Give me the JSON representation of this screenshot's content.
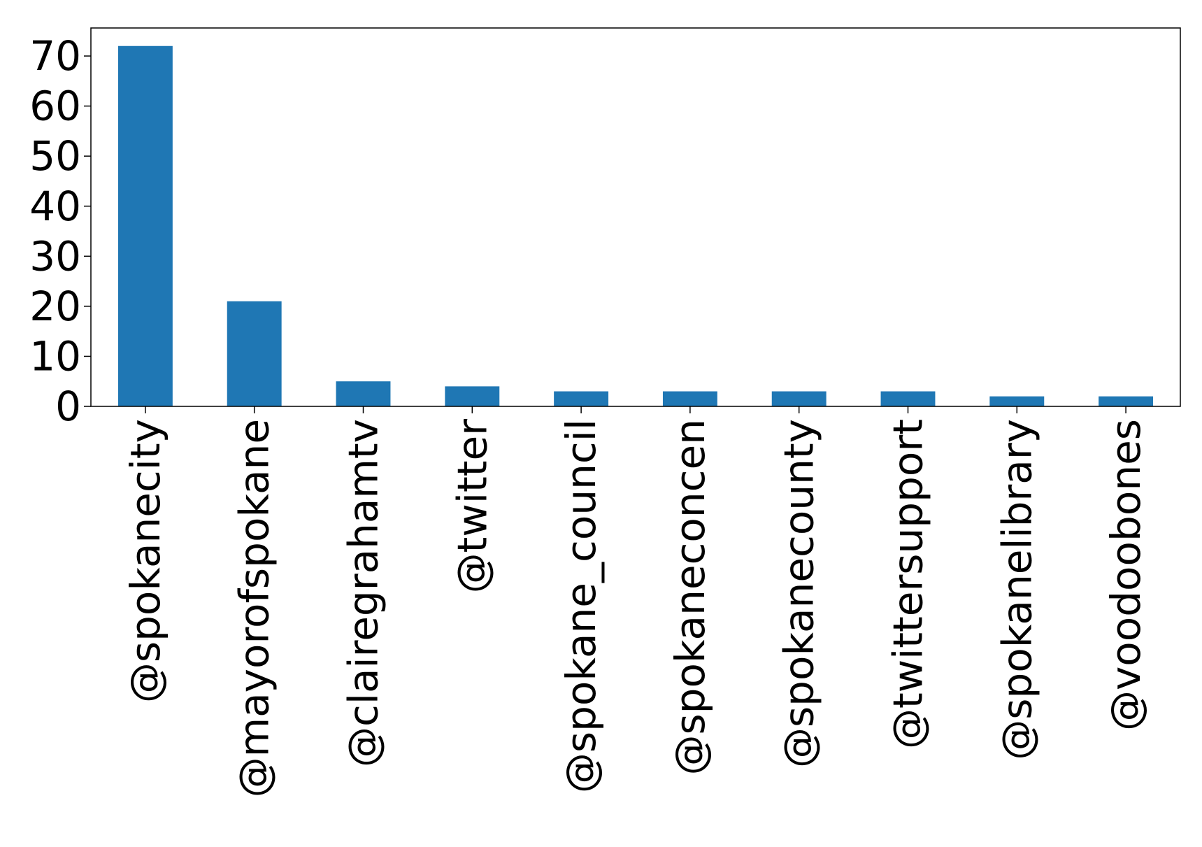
{
  "chart_data": {
    "type": "bar",
    "title": "",
    "xlabel": "",
    "ylabel": "",
    "categories": [
      "@spokanecity",
      "@mayorofspokane",
      "@clairegrahamtv",
      "@twitter",
      "@spokane_council",
      "@spokaneconcen",
      "@spokanecounty",
      "@twittersupport",
      "@spokanelibrary",
      "@voodoobones"
    ],
    "values": [
      72,
      21,
      5,
      4,
      3,
      3,
      3,
      3,
      2,
      2
    ],
    "ylim": [
      0,
      75.6
    ],
    "yticks": [
      0,
      10,
      20,
      30,
      40,
      50,
      60,
      70
    ],
    "ytick_labels": [
      "0",
      "10",
      "20",
      "30",
      "40",
      "50",
      "60",
      "70"
    ],
    "bar_color": "#1f77b4",
    "grid": false,
    "legend": "none"
  }
}
